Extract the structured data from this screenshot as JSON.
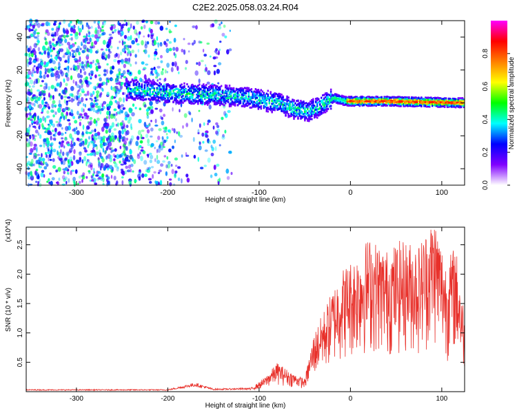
{
  "page": {
    "title": "C2E2.2025.058.03.24.R04"
  },
  "chart_data": [
    {
      "type": "heatmap",
      "xlabel": "Height of straight line (km)",
      "ylabel": "Frequency (Hz)",
      "xlim": [
        -355,
        125
      ],
      "ylim": [
        -50,
        50
      ],
      "x_ticks": [
        -300,
        -200,
        -100,
        0,
        100
      ],
      "y_ticks": [
        -40,
        -20,
        0,
        20,
        40
      ],
      "colorbar": {
        "label": "Normalized spectral amplitude",
        "range": [
          0.0,
          1.0
        ],
        "ticks": [
          "0.0",
          "0.2",
          "0.4",
          "0.6",
          "0.8"
        ],
        "colors": [
          "#ffffff",
          "#8000ff",
          "#0000ff",
          "#00ffff",
          "#00ff00",
          "#ffff00",
          "#ff8000",
          "#ff0000",
          "#ff00ff"
        ]
      },
      "ridge_frequency": [
        {
          "x": -240,
          "y": 8
        },
        {
          "x": -200,
          "y": 6
        },
        {
          "x": -150,
          "y": 5
        },
        {
          "x": -110,
          "y": 3
        },
        {
          "x": -80,
          "y": 0
        },
        {
          "x": -60,
          "y": -4
        },
        {
          "x": -45,
          "y": -5
        },
        {
          "x": -30,
          "y": -1
        },
        {
          "x": -18,
          "y": 3
        },
        {
          "x": -5,
          "y": 1
        },
        {
          "x": 40,
          "y": 1
        },
        {
          "x": 125,
          "y": 0
        }
      ]
    },
    {
      "type": "line",
      "xlabel": "Height of straight line (km)",
      "ylabel": "SNR (10 * v/v)",
      "y_multiplier": "(x10^4)",
      "xlim": [
        -355,
        125
      ],
      "ylim": [
        0,
        2.8
      ],
      "x_ticks": [
        -300,
        -200,
        -100,
        0,
        100
      ],
      "y_ticks": [
        "0.5",
        "1.0",
        "1.5",
        "2.0",
        "2.5"
      ],
      "line_color": "#e8302a",
      "envelope": [
        {
          "x": -355,
          "y": 0.03
        },
        {
          "x": -200,
          "y": 0.03
        },
        {
          "x": -170,
          "y": 0.12
        },
        {
          "x": -150,
          "y": 0.04
        },
        {
          "x": -110,
          "y": 0.05
        },
        {
          "x": -95,
          "y": 0.2
        },
        {
          "x": -80,
          "y": 0.45
        },
        {
          "x": -65,
          "y": 0.3
        },
        {
          "x": -50,
          "y": 0.2
        },
        {
          "x": -40,
          "y": 0.9
        },
        {
          "x": -25,
          "y": 1.4
        },
        {
          "x": -10,
          "y": 1.9
        },
        {
          "x": 5,
          "y": 2.1
        },
        {
          "x": 20,
          "y": 2.4
        },
        {
          "x": 40,
          "y": 2.2
        },
        {
          "x": 55,
          "y": 2.35
        },
        {
          "x": 75,
          "y": 2.3
        },
        {
          "x": 92,
          "y": 2.75
        },
        {
          "x": 105,
          "y": 2.0
        },
        {
          "x": 115,
          "y": 2.3
        },
        {
          "x": 125,
          "y": 1.2
        }
      ]
    }
  ]
}
